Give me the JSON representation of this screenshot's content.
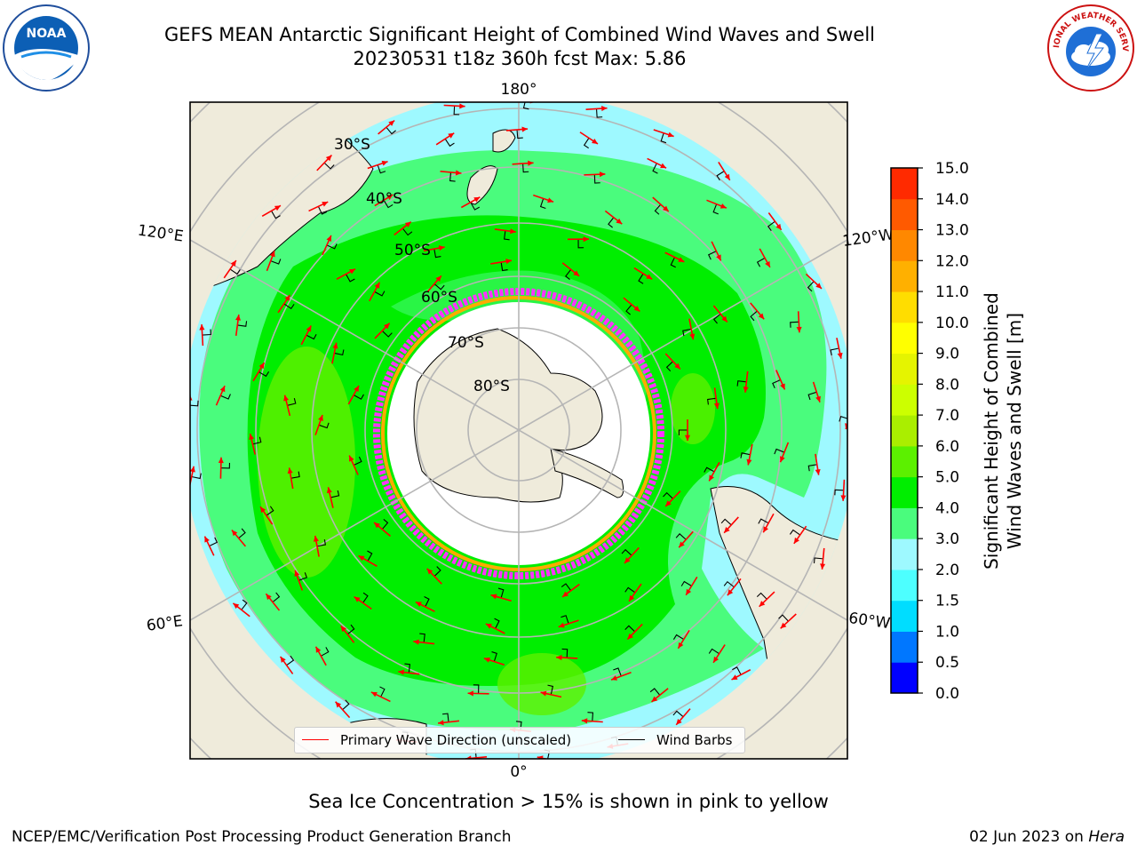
{
  "header": {
    "title_line1": "GEFS MEAN Antarctic Significant Height of Combined Wind Waves and Swell",
    "title_line2": "20230531 t18z 360h fcst   Max: 5.86"
  },
  "logos": {
    "left": {
      "name": "NOAA",
      "text": "NOAA"
    },
    "right": {
      "name": "National Weather Service",
      "text": "NATIONAL WEATHER SERVICE"
    }
  },
  "map": {
    "projection": "south-polar-stereographic",
    "longitude_labels": [
      "180°",
      "120°E",
      "120°W",
      "60°E",
      "60°W",
      "0°"
    ],
    "latitude_labels": [
      "30°S",
      "40°S",
      "50°S",
      "60°S",
      "70°S",
      "80°S"
    ],
    "colors": {
      "land": "#efebdb",
      "ice": "#ffffff",
      "ocean_low": "#9ef9ff",
      "ocean_mid": "#4afc7d",
      "ocean_high": "#00ee00",
      "ocean_peak": "#7cf12b",
      "graticule": "#b5b5b5",
      "wave_arrow": "#ff0000",
      "wind_barb": "#000000",
      "sea_ice_edge": [
        "#ff33ff",
        "#ffaa00",
        "#ffff00"
      ]
    }
  },
  "legend": {
    "items": [
      {
        "label": "Primary Wave Direction (unscaled)",
        "color": "#ff0000"
      },
      {
        "label": "Wind Barbs",
        "color": "#000000"
      }
    ]
  },
  "colorbar": {
    "label_line1": "Significant Height of Combined",
    "label_line2": "Wind Waves and Swell [m]",
    "ticks": [
      "0.0",
      "0.5",
      "1.0",
      "1.5",
      "2.0",
      "3.0",
      "4.0",
      "5.0",
      "6.0",
      "7.0",
      "8.0",
      "9.0",
      "10.0",
      "11.0",
      "12.0",
      "13.0",
      "14.0",
      "15.0"
    ],
    "colors": [
      "#0000ff",
      "#0077ff",
      "#00ddff",
      "#4dffff",
      "#9ef9ff",
      "#4afc7d",
      "#00ee00",
      "#5cf000",
      "#aaee00",
      "#ccff00",
      "#e5f400",
      "#ffff00",
      "#ffdd00",
      "#ffb000",
      "#ff8800",
      "#ff5a00",
      "#ff2a00"
    ]
  },
  "footer": {
    "note": "Sea Ice Concentration > 15% is shown in pink to yellow",
    "credit": "NCEP/EMC/Verification Post Processing Product Generation Branch",
    "date": "02 Jun 2023 on ",
    "host": "Hera"
  }
}
